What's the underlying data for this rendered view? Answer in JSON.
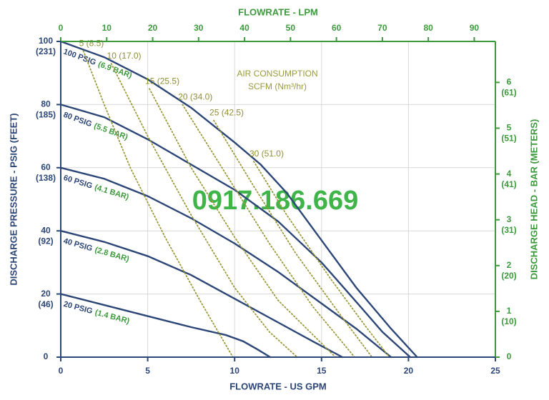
{
  "chart_data": {
    "type": "line",
    "x_label": "FLOWRATE - US GPM",
    "x2_label": "FLOWRATE - LPM",
    "y_label": "DISCHARGE PRESSURE - PSIG (FEET)",
    "y2_label": "DISCHARGE HEAD - BAR (METERS)",
    "annotation": [
      "AIR CONSUMPTION",
      "SCFM (Nm³/hr)"
    ],
    "watermark": "0917.186.669",
    "xlim": [
      0,
      25
    ],
    "xticks": [
      0,
      5,
      10,
      15,
      20,
      25
    ],
    "x2lim": [
      0,
      94.6
    ],
    "x2ticks": [
      0,
      10,
      20,
      30,
      40,
      50,
      60,
      70,
      80,
      90
    ],
    "ylim": [
      0,
      100
    ],
    "yticks": [
      {
        "value": 0,
        "label": "0"
      },
      {
        "value": 20,
        "label": "20",
        "feet": "(46)"
      },
      {
        "value": 40,
        "label": "40",
        "feet": "(92)"
      },
      {
        "value": 60,
        "label": "60",
        "feet": "(138)"
      },
      {
        "value": 80,
        "label": "80",
        "feet": "(185)"
      },
      {
        "value": 100,
        "label": "100",
        "feet": "(231)"
      }
    ],
    "y2lim": [
      0,
      6.895
    ],
    "y2ticks": [
      {
        "value": 0,
        "label": "0"
      },
      {
        "value": 1,
        "label": "1",
        "meters": "(10)"
      },
      {
        "value": 2,
        "label": "2",
        "meters": "(20)"
      },
      {
        "value": 3,
        "label": "3",
        "meters": "(31)"
      },
      {
        "value": 4,
        "label": "4",
        "meters": "(41)"
      },
      {
        "value": 5,
        "label": "5",
        "meters": "(51)"
      },
      {
        "value": 6,
        "label": "6",
        "meters": "(61)"
      }
    ],
    "grid": true,
    "series": [
      {
        "name": "100 PSIG",
        "bar_label": "(6.9 BAR)",
        "color": "#2c4677",
        "style": "solid",
        "x": [
          0,
          2.5,
          5,
          7.5,
          10,
          11.5,
          13,
          15,
          17,
          19,
          20.5
        ],
        "values": [
          100,
          95,
          88,
          79,
          68,
          61,
          52,
          37,
          22,
          9,
          0
        ]
      },
      {
        "name": "80 PSIG",
        "bar_label": "(5.5 BAR)",
        "color": "#2c4677",
        "style": "solid",
        "x": [
          0,
          2.5,
          5,
          7.5,
          10,
          12.5,
          15,
          17,
          18.5,
          20.1
        ],
        "values": [
          80,
          76,
          69,
          61,
          53,
          43,
          30,
          17.5,
          8,
          0
        ]
      },
      {
        "name": "60 PSIG",
        "bar_label": "(4.1 BAR)",
        "color": "#2c4677",
        "style": "solid",
        "x": [
          0,
          2.5,
          5,
          7.5,
          10,
          12.5,
          15,
          17,
          19
        ],
        "values": [
          60,
          56.5,
          51,
          44,
          36,
          27,
          17,
          9,
          0
        ]
      },
      {
        "name": "40 PSIG",
        "bar_label": "(2.8 BAR)",
        "color": "#2c4677",
        "style": "solid",
        "x": [
          0,
          2.5,
          5,
          7.5,
          10,
          12.5,
          14.5,
          16.2
        ],
        "values": [
          40,
          36.5,
          32,
          26,
          18.5,
          11,
          5,
          0
        ]
      },
      {
        "name": "20 PSIG",
        "bar_label": "(1.4 BAR)",
        "color": "#2c4677",
        "style": "solid",
        "x": [
          0,
          2.5,
          5,
          7.5,
          9.5,
          10.5,
          11.3,
          12.05
        ],
        "values": [
          20,
          16.5,
          13,
          9.5,
          7,
          5,
          2.5,
          0
        ]
      },
      {
        "name": "5 (8.5)",
        "color": "#9a9a3c",
        "style": "dotted",
        "x": [
          1.3,
          2.5,
          4,
          6,
          8,
          9.9
        ],
        "values": [
          97,
          80,
          60,
          38,
          18,
          0
        ]
      },
      {
        "name": "10 (17.0)",
        "color": "#9a9a3c",
        "style": "dotted",
        "x": [
          2.9,
          5,
          7.5,
          10,
          12,
          13.6
        ],
        "values": [
          93,
          70,
          45,
          22,
          8,
          0
        ]
      },
      {
        "name": "15 (25.5)",
        "color": "#9a9a3c",
        "style": "dotted",
        "x": [
          5.1,
          7.5,
          10,
          12.5,
          15.8
        ],
        "values": [
          85,
          60,
          38,
          18,
          0
        ]
      },
      {
        "name": "20 (34.0)",
        "color": "#9a9a3c",
        "style": "dotted",
        "x": [
          7,
          9.5,
          12,
          14.5,
          16.9
        ],
        "values": [
          80,
          58,
          36,
          16,
          0
        ]
      },
      {
        "name": "25 (42.5)",
        "color": "#9a9a3c",
        "style": "dotted",
        "x": [
          8.8,
          11,
          13.5,
          16,
          17.9
        ],
        "values": [
          75,
          55,
          33,
          14,
          0
        ]
      },
      {
        "name": "30 (51.0)",
        "color": "#9a9a3c",
        "style": "dotted",
        "x": [
          11.1,
          13,
          15.5,
          17.5,
          18.9
        ],
        "values": [
          62,
          45,
          25,
          10,
          0
        ]
      }
    ]
  }
}
